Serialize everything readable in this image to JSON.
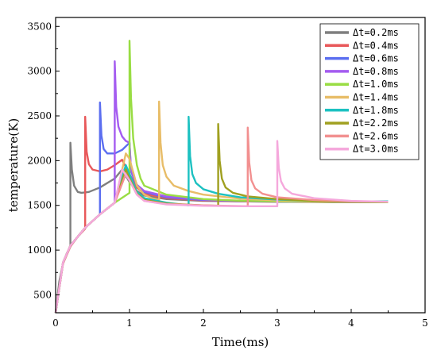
{
  "chart_data": {
    "type": "line",
    "title": "",
    "xlabel": "Time(ms)",
    "ylabel": "temperature(K)",
    "xlim": [
      0,
      5
    ],
    "ylim": [
      300,
      3600
    ],
    "x_ticks": [
      0,
      1,
      2,
      3,
      4,
      5
    ],
    "y_ticks": [
      500,
      1000,
      1500,
      2000,
      2500,
      3000,
      3500
    ],
    "grid": false,
    "legend_position": "top-right",
    "series": [
      {
        "name": "Δt=0.2ms",
        "color": "#7f7f7f",
        "points": [
          [
            0,
            300
          ],
          [
            0.05,
            650
          ],
          [
            0.1,
            850
          ],
          [
            0.15,
            960
          ],
          [
            0.2,
            1040
          ],
          [
            0.2,
            2200
          ],
          [
            0.22,
            1900
          ],
          [
            0.25,
            1720
          ],
          [
            0.3,
            1650
          ],
          [
            0.35,
            1640
          ],
          [
            0.45,
            1650
          ],
          [
            0.6,
            1700
          ],
          [
            0.8,
            1800
          ],
          [
            0.9,
            1900
          ],
          [
            1.0,
            1760
          ],
          [
            1.1,
            1660
          ],
          [
            1.2,
            1610
          ],
          [
            1.5,
            1570
          ],
          [
            2.0,
            1550
          ],
          [
            2.5,
            1545
          ],
          [
            3.0,
            1540
          ],
          [
            3.5,
            1540
          ],
          [
            4.0,
            1535
          ],
          [
            4.5,
            1535
          ]
        ]
      },
      {
        "name": "Δt=0.4ms",
        "color": "#e8585a",
        "points": [
          [
            0,
            300
          ],
          [
            0.1,
            850
          ],
          [
            0.2,
            1040
          ],
          [
            0.3,
            1150
          ],
          [
            0.4,
            1240
          ],
          [
            0.4,
            2490
          ],
          [
            0.42,
            2100
          ],
          [
            0.45,
            1960
          ],
          [
            0.5,
            1900
          ],
          [
            0.6,
            1880
          ],
          [
            0.7,
            1900
          ],
          [
            0.8,
            1950
          ],
          [
            0.9,
            2010
          ],
          [
            1.0,
            1850
          ],
          [
            1.1,
            1700
          ],
          [
            1.2,
            1630
          ],
          [
            1.5,
            1580
          ],
          [
            2.0,
            1555
          ],
          [
            2.5,
            1545
          ],
          [
            3.0,
            1540
          ],
          [
            4.0,
            1535
          ],
          [
            4.5,
            1535
          ]
        ]
      },
      {
        "name": "Δt=0.6ms",
        "color": "#5b6ef0",
        "points": [
          [
            0,
            300
          ],
          [
            0.1,
            860
          ],
          [
            0.2,
            1050
          ],
          [
            0.4,
            1250
          ],
          [
            0.6,
            1400
          ],
          [
            0.6,
            2650
          ],
          [
            0.62,
            2280
          ],
          [
            0.65,
            2130
          ],
          [
            0.7,
            2080
          ],
          [
            0.8,
            2080
          ],
          [
            0.9,
            2120
          ],
          [
            1.0,
            2200
          ],
          [
            1.02,
            1880
          ],
          [
            1.1,
            1720
          ],
          [
            1.2,
            1650
          ],
          [
            1.5,
            1590
          ],
          [
            2.0,
            1560
          ],
          [
            2.5,
            1548
          ],
          [
            3.0,
            1542
          ],
          [
            4.0,
            1536
          ],
          [
            4.5,
            1535
          ]
        ]
      },
      {
        "name": "Δt=0.8ms",
        "color": "#a45cf0",
        "points": [
          [
            0,
            300
          ],
          [
            0.1,
            860
          ],
          [
            0.2,
            1050
          ],
          [
            0.4,
            1250
          ],
          [
            0.6,
            1400
          ],
          [
            0.8,
            1530
          ],
          [
            0.8,
            3110
          ],
          [
            0.82,
            2600
          ],
          [
            0.85,
            2380
          ],
          [
            0.9,
            2270
          ],
          [
            0.95,
            2220
          ],
          [
            1.0,
            2200
          ],
          [
            1.02,
            1900
          ],
          [
            1.1,
            1730
          ],
          [
            1.2,
            1660
          ],
          [
            1.5,
            1600
          ],
          [
            2.0,
            1565
          ],
          [
            2.5,
            1550
          ],
          [
            3.0,
            1543
          ],
          [
            4.0,
            1537
          ],
          [
            4.5,
            1535
          ]
        ]
      },
      {
        "name": "Δt=1.0ms",
        "color": "#99dd44",
        "points": [
          [
            0,
            300
          ],
          [
            0.1,
            860
          ],
          [
            0.2,
            1050
          ],
          [
            0.4,
            1250
          ],
          [
            0.6,
            1400
          ],
          [
            0.8,
            1530
          ],
          [
            1.0,
            1640
          ],
          [
            1.0,
            3340
          ],
          [
            1.02,
            2700
          ],
          [
            1.05,
            2250
          ],
          [
            1.1,
            1950
          ],
          [
            1.15,
            1800
          ],
          [
            1.2,
            1720
          ],
          [
            1.5,
            1620
          ],
          [
            2.0,
            1570
          ],
          [
            2.5,
            1552
          ],
          [
            3.0,
            1544
          ],
          [
            4.0,
            1537
          ],
          [
            4.5,
            1535
          ]
        ]
      },
      {
        "name": "Δt=1.4ms",
        "color": "#e8bd68",
        "points": [
          [
            0,
            300
          ],
          [
            0.1,
            860
          ],
          [
            0.2,
            1050
          ],
          [
            0.4,
            1250
          ],
          [
            0.6,
            1400
          ],
          [
            0.8,
            1530
          ],
          [
            0.95,
            2080
          ],
          [
            1.0,
            2020
          ],
          [
            1.1,
            1720
          ],
          [
            1.2,
            1620
          ],
          [
            1.3,
            1580
          ],
          [
            1.4,
            1560
          ],
          [
            1.4,
            2660
          ],
          [
            1.42,
            2200
          ],
          [
            1.45,
            1950
          ],
          [
            1.5,
            1820
          ],
          [
            1.6,
            1720
          ],
          [
            1.8,
            1660
          ],
          [
            2.0,
            1620
          ],
          [
            2.5,
            1575
          ],
          [
            3.0,
            1555
          ],
          [
            3.5,
            1545
          ],
          [
            4.0,
            1540
          ],
          [
            4.5,
            1538
          ]
        ]
      },
      {
        "name": "Δt=1.8ms",
        "color": "#1cc1c1",
        "points": [
          [
            0,
            300
          ],
          [
            0.1,
            860
          ],
          [
            0.2,
            1050
          ],
          [
            0.4,
            1250
          ],
          [
            0.6,
            1400
          ],
          [
            0.8,
            1530
          ],
          [
            0.95,
            1950
          ],
          [
            1.0,
            1850
          ],
          [
            1.1,
            1650
          ],
          [
            1.2,
            1580
          ],
          [
            1.5,
            1530
          ],
          [
            1.8,
            1500
          ],
          [
            1.8,
            2490
          ],
          [
            1.82,
            2050
          ],
          [
            1.85,
            1850
          ],
          [
            1.9,
            1750
          ],
          [
            2.0,
            1680
          ],
          [
            2.2,
            1630
          ],
          [
            2.5,
            1590
          ],
          [
            3.0,
            1565
          ],
          [
            3.5,
            1550
          ],
          [
            4.0,
            1545
          ],
          [
            4.5,
            1545
          ]
        ]
      },
      {
        "name": "Δt=2.2ms",
        "color": "#a0a020",
        "points": [
          [
            0,
            300
          ],
          [
            0.1,
            860
          ],
          [
            0.2,
            1050
          ],
          [
            0.4,
            1250
          ],
          [
            0.6,
            1400
          ],
          [
            0.8,
            1530
          ],
          [
            0.95,
            1900
          ],
          [
            1.0,
            1800
          ],
          [
            1.1,
            1630
          ],
          [
            1.2,
            1560
          ],
          [
            1.5,
            1520
          ],
          [
            2.0,
            1500
          ],
          [
            2.2,
            1495
          ],
          [
            2.2,
            2410
          ],
          [
            2.22,
            2000
          ],
          [
            2.25,
            1800
          ],
          [
            2.3,
            1700
          ],
          [
            2.4,
            1640
          ],
          [
            2.6,
            1600
          ],
          [
            3.0,
            1570
          ],
          [
            3.5,
            1550
          ],
          [
            4.0,
            1540
          ],
          [
            4.5,
            1538
          ]
        ]
      },
      {
        "name": "Δt=2.6ms",
        "color": "#f29090",
        "points": [
          [
            0,
            300
          ],
          [
            0.1,
            860
          ],
          [
            0.2,
            1050
          ],
          [
            0.4,
            1250
          ],
          [
            0.6,
            1400
          ],
          [
            0.8,
            1530
          ],
          [
            0.95,
            1850
          ],
          [
            1.0,
            1780
          ],
          [
            1.1,
            1620
          ],
          [
            1.2,
            1550
          ],
          [
            1.5,
            1515
          ],
          [
            2.0,
            1500
          ],
          [
            2.6,
            1490
          ],
          [
            2.6,
            2370
          ],
          [
            2.62,
            1980
          ],
          [
            2.65,
            1780
          ],
          [
            2.7,
            1690
          ],
          [
            2.8,
            1630
          ],
          [
            3.0,
            1590
          ],
          [
            3.5,
            1560
          ],
          [
            4.0,
            1545
          ],
          [
            4.5,
            1540
          ]
        ]
      },
      {
        "name": "Δt=3.0ms",
        "color": "#f5a8dc",
        "points": [
          [
            0,
            300
          ],
          [
            0.1,
            860
          ],
          [
            0.2,
            1050
          ],
          [
            0.4,
            1250
          ],
          [
            0.6,
            1400
          ],
          [
            0.8,
            1530
          ],
          [
            0.9,
            1900
          ],
          [
            1.0,
            1780
          ],
          [
            1.1,
            1620
          ],
          [
            1.2,
            1550
          ],
          [
            1.5,
            1510
          ],
          [
            2.0,
            1495
          ],
          [
            2.5,
            1490
          ],
          [
            3.0,
            1490
          ],
          [
            3.0,
            2220
          ],
          [
            3.02,
            1920
          ],
          [
            3.05,
            1770
          ],
          [
            3.1,
            1690
          ],
          [
            3.2,
            1630
          ],
          [
            3.5,
            1580
          ],
          [
            4.0,
            1550
          ],
          [
            4.5,
            1540
          ]
        ]
      }
    ]
  }
}
